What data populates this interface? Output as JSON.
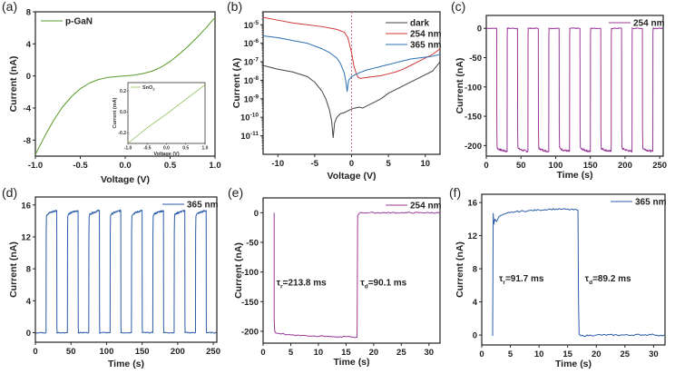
{
  "figure": {
    "panels": [
      "a",
      "b",
      "c",
      "d",
      "e",
      "f"
    ]
  },
  "chart_data": [
    {
      "id": "a",
      "type": "line",
      "panel_label": "(a)",
      "title": "",
      "xlabel": "Voltage (V)",
      "ylabel": "Current (nA)",
      "xlim": [
        -1.0,
        1.0
      ],
      "ylim": [
        -10,
        8
      ],
      "xticks": [
        -1.0,
        -0.5,
        0.0,
        0.5,
        1.0
      ],
      "xtick_labels": [
        "-1.0",
        "-0.5",
        "0.0",
        "0.5",
        "1.0"
      ],
      "yticks": [
        -8,
        -4,
        0,
        4,
        8
      ],
      "ytick_labels": [
        "-8",
        "-4",
        "0",
        "4",
        "8"
      ],
      "legend": {
        "position": "top-left",
        "entries": [
          {
            "name": "p-GaN",
            "color": "#5a9a2a"
          }
        ]
      },
      "series": [
        {
          "name": "p-GaN",
          "color": "#5a9a2a",
          "x": [
            -1.0,
            -0.9,
            -0.8,
            -0.7,
            -0.6,
            -0.5,
            -0.4,
            -0.3,
            -0.2,
            -0.1,
            0.0,
            0.1,
            0.2,
            0.3,
            0.4,
            0.5,
            0.6,
            0.7,
            0.8,
            0.9,
            1.0
          ],
          "y": [
            -9.8,
            -7.6,
            -5.6,
            -3.9,
            -2.6,
            -1.6,
            -0.9,
            -0.45,
            -0.2,
            -0.08,
            0.0,
            0.1,
            0.3,
            0.6,
            1.1,
            1.8,
            2.7,
            3.7,
            4.8,
            6.0,
            7.3
          ]
        }
      ],
      "inset": {
        "xlabel": "Voltage (V)",
        "ylabel": "Current (mA)",
        "xlim": [
          -1.0,
          1.0
        ],
        "ylim": [
          -0.3,
          0.28
        ],
        "xticks": [
          -1.0,
          -0.5,
          0.0,
          0.5,
          1.0
        ],
        "xtick_labels": [
          "-1.0",
          "-0.5",
          "0.0",
          "0.5",
          "1.0"
        ],
        "yticks": [
          -0.2,
          0.0,
          0.2
        ],
        "ytick_labels": [
          "-0.2",
          "0.0",
          "0.2"
        ],
        "legend": {
          "entries": [
            {
              "name": "SnO",
              "subscript": "2",
              "color": "#8fbf5a"
            }
          ]
        },
        "series": [
          {
            "name": "SnO2",
            "color": "#8fbf5a",
            "x": [
              -1.0,
              -0.5,
              0.0,
              0.5,
              1.0
            ],
            "y": [
              -0.3,
              -0.15,
              -0.02,
              0.12,
              0.26
            ]
          }
        ]
      }
    },
    {
      "id": "b",
      "type": "line",
      "panel_label": "(b)",
      "title": "",
      "xlabel": "Voltage (V)",
      "ylabel": "Current (A)",
      "yscale": "log",
      "xlim": [
        -12,
        12
      ],
      "ylim_exp": [
        -12,
        -4.3
      ],
      "xticks": [
        -10,
        -5,
        0,
        5,
        10
      ],
      "xtick_labels": [
        "-10",
        "-5",
        "0",
        "5",
        "10"
      ],
      "yticks_exp": [
        -11,
        -10,
        -9,
        -8,
        -7,
        -6,
        -5
      ],
      "ytick_base": "10",
      "ytick_exponents": [
        "-11",
        "-10",
        "-9",
        "-8",
        "-7",
        "-6",
        "-5"
      ],
      "vline": {
        "x": 0,
        "color": "#d06a8a",
        "style": "dashed"
      },
      "legend": {
        "position": "top-right",
        "entries": [
          {
            "name": "dark",
            "color": "#444444"
          },
          {
            "name": "254 nm",
            "color": "#d0393b"
          },
          {
            "name": "365 nm",
            "color": "#2a6fb5"
          }
        ]
      },
      "series": [
        {
          "name": "dark",
          "color": "#444444",
          "x": [
            -12,
            -10,
            -8,
            -6,
            -5,
            -4,
            -3.5,
            -3,
            -2.7,
            -2.5,
            -2.3,
            -2.0,
            -1.5,
            -1,
            0,
            0.5,
            1,
            1.5,
            2,
            3,
            4,
            5,
            6,
            7,
            8,
            9,
            10,
            11,
            12
          ],
          "log10y": [
            -7.2,
            -7.4,
            -7.55,
            -7.8,
            -8.1,
            -8.6,
            -9.0,
            -9.6,
            -10.2,
            -11.1,
            -10.3,
            -10.0,
            -9.8,
            -9.75,
            -9.55,
            -9.5,
            -9.45,
            -9.5,
            -9.4,
            -9.2,
            -9.0,
            -8.7,
            -8.5,
            -8.3,
            -8.1,
            -7.9,
            -7.7,
            -7.5,
            -7.0
          ]
        },
        {
          "name": "254 nm",
          "color": "#d0393b",
          "x": [
            -12,
            -10,
            -8,
            -6,
            -4,
            -2,
            -1,
            -0.5,
            0,
            0.3,
            0.6,
            0.9,
            1.2,
            2,
            3,
            4,
            5,
            6,
            7,
            8,
            9,
            10,
            11,
            12
          ],
          "log10y": [
            -4.6,
            -4.75,
            -4.9,
            -5.0,
            -5.1,
            -5.25,
            -5.4,
            -5.7,
            -6.5,
            -7.2,
            -7.6,
            -7.85,
            -7.9,
            -7.85,
            -7.8,
            -7.75,
            -7.65,
            -7.55,
            -7.4,
            -7.2,
            -7.0,
            -6.8,
            -6.6,
            -6.3
          ]
        },
        {
          "name": "365 nm",
          "color": "#2a6fb5",
          "x": [
            -12,
            -10,
            -8,
            -6,
            -4,
            -3,
            -2,
            -1.5,
            -1,
            -0.8,
            -0.6,
            -0.4,
            0,
            1,
            2,
            3,
            4,
            5,
            6,
            7,
            8,
            9,
            10,
            11,
            12
          ],
          "log10y": [
            -5.6,
            -5.7,
            -5.85,
            -6.0,
            -6.3,
            -6.5,
            -6.8,
            -7.1,
            -7.6,
            -8.0,
            -8.6,
            -8.0,
            -7.8,
            -7.6,
            -7.45,
            -7.35,
            -7.25,
            -7.15,
            -7.05,
            -6.95,
            -6.85,
            -6.8,
            -6.75,
            -6.7,
            -6.6
          ]
        }
      ]
    },
    {
      "id": "c",
      "type": "line",
      "panel_label": "(c)",
      "xlabel": "Time (s)",
      "ylabel": "Current (nA)",
      "xlim": [
        0,
        255
      ],
      "ylim": [
        -218,
        22
      ],
      "xticks": [
        0,
        50,
        100,
        150,
        200,
        250
      ],
      "xtick_labels": [
        "0",
        "50",
        "100",
        "150",
        "200",
        "250"
      ],
      "yticks": [
        -200,
        -150,
        -100,
        -50,
        0
      ],
      "ytick_labels": [
        "-200",
        "-150",
        "-100",
        "-50",
        "0"
      ],
      "legend": {
        "position": "top-right",
        "entries": [
          {
            "name": "254 nm",
            "color": "#9b3a9b"
          }
        ]
      },
      "series": [
        {
          "name": "254 nm",
          "color": "#9b3a9b",
          "pulse_train": {
            "period_s": 30,
            "on_start_s": 15,
            "on_duration_s": 15,
            "cycles": 8,
            "off_level": 0,
            "on_level_start": -203,
            "on_level_end": -210
          }
        }
      ]
    },
    {
      "id": "d",
      "type": "line",
      "panel_label": "(d)",
      "xlabel": "Time (s)",
      "ylabel": "Current (nA)",
      "xlim": [
        0,
        255
      ],
      "ylim": [
        -1.2,
        17
      ],
      "xticks": [
        0,
        50,
        100,
        150,
        200,
        250
      ],
      "xtick_labels": [
        "0",
        "50",
        "100",
        "150",
        "200",
        "250"
      ],
      "yticks": [
        0,
        4,
        8,
        12,
        16
      ],
      "ytick_labels": [
        "0",
        "4",
        "8",
        "12",
        "16"
      ],
      "legend": {
        "position": "top-right",
        "entries": [
          {
            "name": "365 nm",
            "color": "#2a5ca8"
          }
        ]
      },
      "series": [
        {
          "name": "365 nm",
          "color": "#2a5ca8",
          "pulse_train": {
            "period_s": 30,
            "on_start_s": 15,
            "on_duration_s": 15,
            "cycles": 8,
            "off_level": 0,
            "on_level_start": 14.6,
            "on_level_end": 15.3
          }
        }
      ]
    },
    {
      "id": "e",
      "type": "line",
      "panel_label": "(e)",
      "xlabel": "Time (s)",
      "ylabel": "Current (nA)",
      "xlim": [
        0,
        32
      ],
      "ylim": [
        -220,
        25
      ],
      "xticks": [
        0,
        5,
        10,
        15,
        20,
        25,
        30
      ],
      "xtick_labels": [
        "0",
        "5",
        "10",
        "15",
        "20",
        "25",
        "30"
      ],
      "yticks": [
        -200,
        -150,
        -100,
        -50,
        0
      ],
      "ytick_labels": [
        "-200",
        "-150",
        "-100",
        "-50",
        "0"
      ],
      "legend": {
        "position": "top-right",
        "entries": [
          {
            "name": "254 nm",
            "color": "#9b3a9b"
          }
        ]
      },
      "annotations": [
        {
          "text": "τ",
          "sub": "r",
          "rest": "=213.8 ms",
          "x": 2.4,
          "y": -123
        },
        {
          "text": "τ",
          "sub": "d",
          "rest": "=90.1 ms",
          "x": 17.6,
          "y": -123
        }
      ],
      "series": [
        {
          "name": "254 nm",
          "color": "#9b3a9b",
          "x": [
            2.0,
            2.0,
            2.1,
            2.3,
            3,
            5,
            7,
            9,
            11,
            13,
            15,
            16.9,
            17.0,
            17.1,
            17.4,
            18,
            20,
            25,
            32
          ],
          "y": [
            0,
            -180,
            -200,
            -203,
            -204,
            -206,
            -207,
            -208,
            -208,
            -210,
            -209,
            -210,
            -210,
            -5,
            -1,
            0,
            0,
            0,
            0
          ]
        }
      ]
    },
    {
      "id": "f",
      "type": "line",
      "panel_label": "(f)",
      "xlabel": "Time (s)",
      "ylabel": "Current (nA)",
      "xlim": [
        0,
        32
      ],
      "ylim": [
        -1.2,
        17
      ],
      "xticks": [
        0,
        5,
        10,
        15,
        20,
        25,
        30
      ],
      "xtick_labels": [
        "0",
        "5",
        "10",
        "15",
        "20",
        "25",
        "30"
      ],
      "yticks": [
        0,
        4,
        8,
        12,
        16
      ],
      "ytick_labels": [
        "0",
        "4",
        "8",
        "12",
        "16"
      ],
      "legend": {
        "position": "top-right",
        "entries": [
          {
            "name": "365 nm",
            "color": "#2a5ca8"
          }
        ]
      },
      "annotations": [
        {
          "text": "τ",
          "sub": "r",
          "rest": "=91.7 ms",
          "x": 3.0,
          "y": 6.5
        },
        {
          "text": "τ",
          "sub": "d",
          "rest": "=89.2 ms",
          "x": 18.0,
          "y": 6.5
        }
      ],
      "series": [
        {
          "name": "365 nm",
          "color": "#2a5ca8",
          "x": [
            1.9,
            2.0,
            2.1,
            2.3,
            2.6,
            3,
            4,
            5,
            6,
            8,
            10,
            12,
            14,
            16.8,
            16.9,
            17.0,
            17.3,
            20,
            25,
            30,
            32
          ],
          "y": [
            -0.1,
            14.7,
            13.4,
            14.0,
            13.7,
            14.3,
            14.6,
            14.8,
            14.9,
            15.0,
            15.1,
            15.2,
            15.2,
            15.1,
            4.0,
            0.1,
            -0.1,
            0,
            0,
            0.05,
            -0.1
          ]
        }
      ]
    }
  ]
}
